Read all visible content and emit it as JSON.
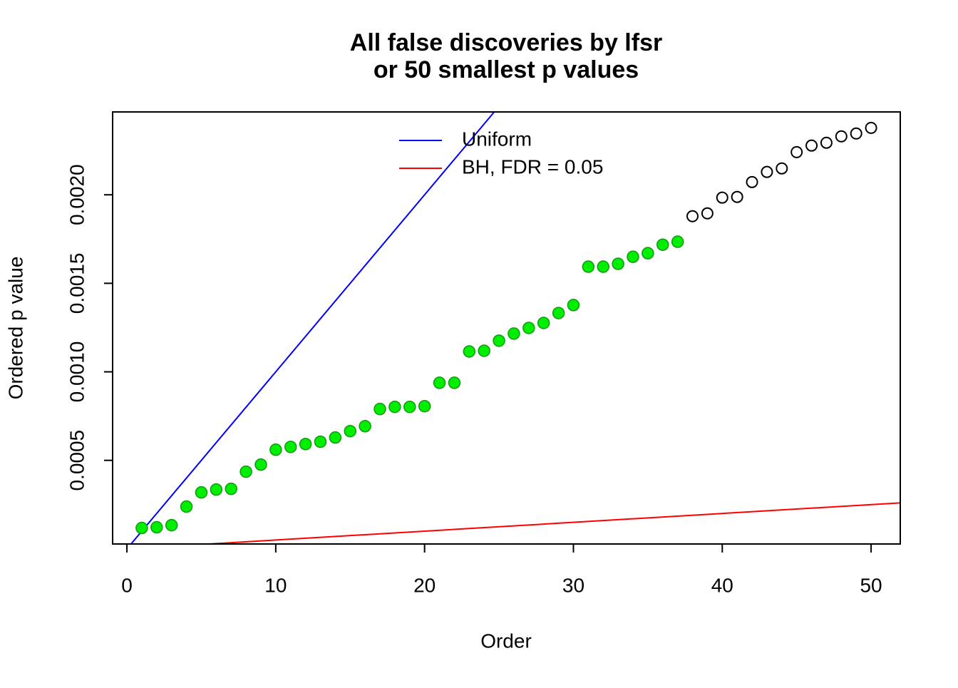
{
  "chart_data": {
    "type": "scatter",
    "title": [
      "All false discoveries by lfsr",
      "or 50 smallest p values"
    ],
    "x_label": "Order",
    "y_label": "Ordered p value",
    "xlim": [
      -0.96,
      51.96
    ],
    "xticks": [
      0,
      10,
      20,
      30,
      40,
      50
    ],
    "ylim": [
      2.76e-05,
      0.002468
    ],
    "yticks": [
      0.0005,
      {
        "value": 0.001,
        "label": "0.0010"
      },
      0.0015,
      {
        "value": 0.002,
        "label": "0.0020"
      }
    ],
    "series": [
      {
        "color": "#00ee00",
        "filled": true,
        "x": [
          1,
          2,
          3,
          4,
          5,
          6,
          7,
          8,
          9,
          10,
          11,
          12,
          13,
          14,
          15,
          16,
          17,
          18,
          19,
          20,
          21,
          22,
          23,
          24,
          25,
          26,
          27,
          28,
          29,
          30,
          31,
          32,
          33,
          34,
          35,
          36,
          37
        ],
        "values": [
          0.000118,
          0.000122,
          0.000134,
          0.000239,
          0.000319,
          0.000335,
          0.000339,
          0.000436,
          0.000476,
          0.00056,
          0.000576,
          0.000592,
          0.000605,
          0.000629,
          0.000665,
          0.000693,
          0.00079,
          0.000802,
          0.000802,
          0.000806,
          0.000938,
          0.000938,
          0.001115,
          0.001119,
          0.001176,
          0.001216,
          0.001248,
          0.001276,
          0.001332,
          0.001377,
          0.001594,
          0.001594,
          0.00161,
          0.00165,
          0.00167,
          0.001718,
          0.001735
        ]
      },
      {
        "color": "#000000",
        "filled": false,
        "x": [
          38,
          39,
          40,
          41,
          42,
          43,
          44,
          45,
          46,
          47,
          48,
          49,
          50
        ],
        "values": [
          0.001879,
          0.001895,
          0.001984,
          0.001988,
          0.002072,
          0.002129,
          0.002149,
          0.002241,
          0.002278,
          0.002294,
          0.00233,
          0.002346,
          0.002378
        ]
      }
    ],
    "lines": [
      {
        "name": "Uniform",
        "color": "#0000ff",
        "slope": 0.0001
      },
      {
        "name": "BH, FDR = 0.05",
        "color": "#ff0000",
        "slope": 5e-06
      }
    ],
    "legend": "top"
  }
}
